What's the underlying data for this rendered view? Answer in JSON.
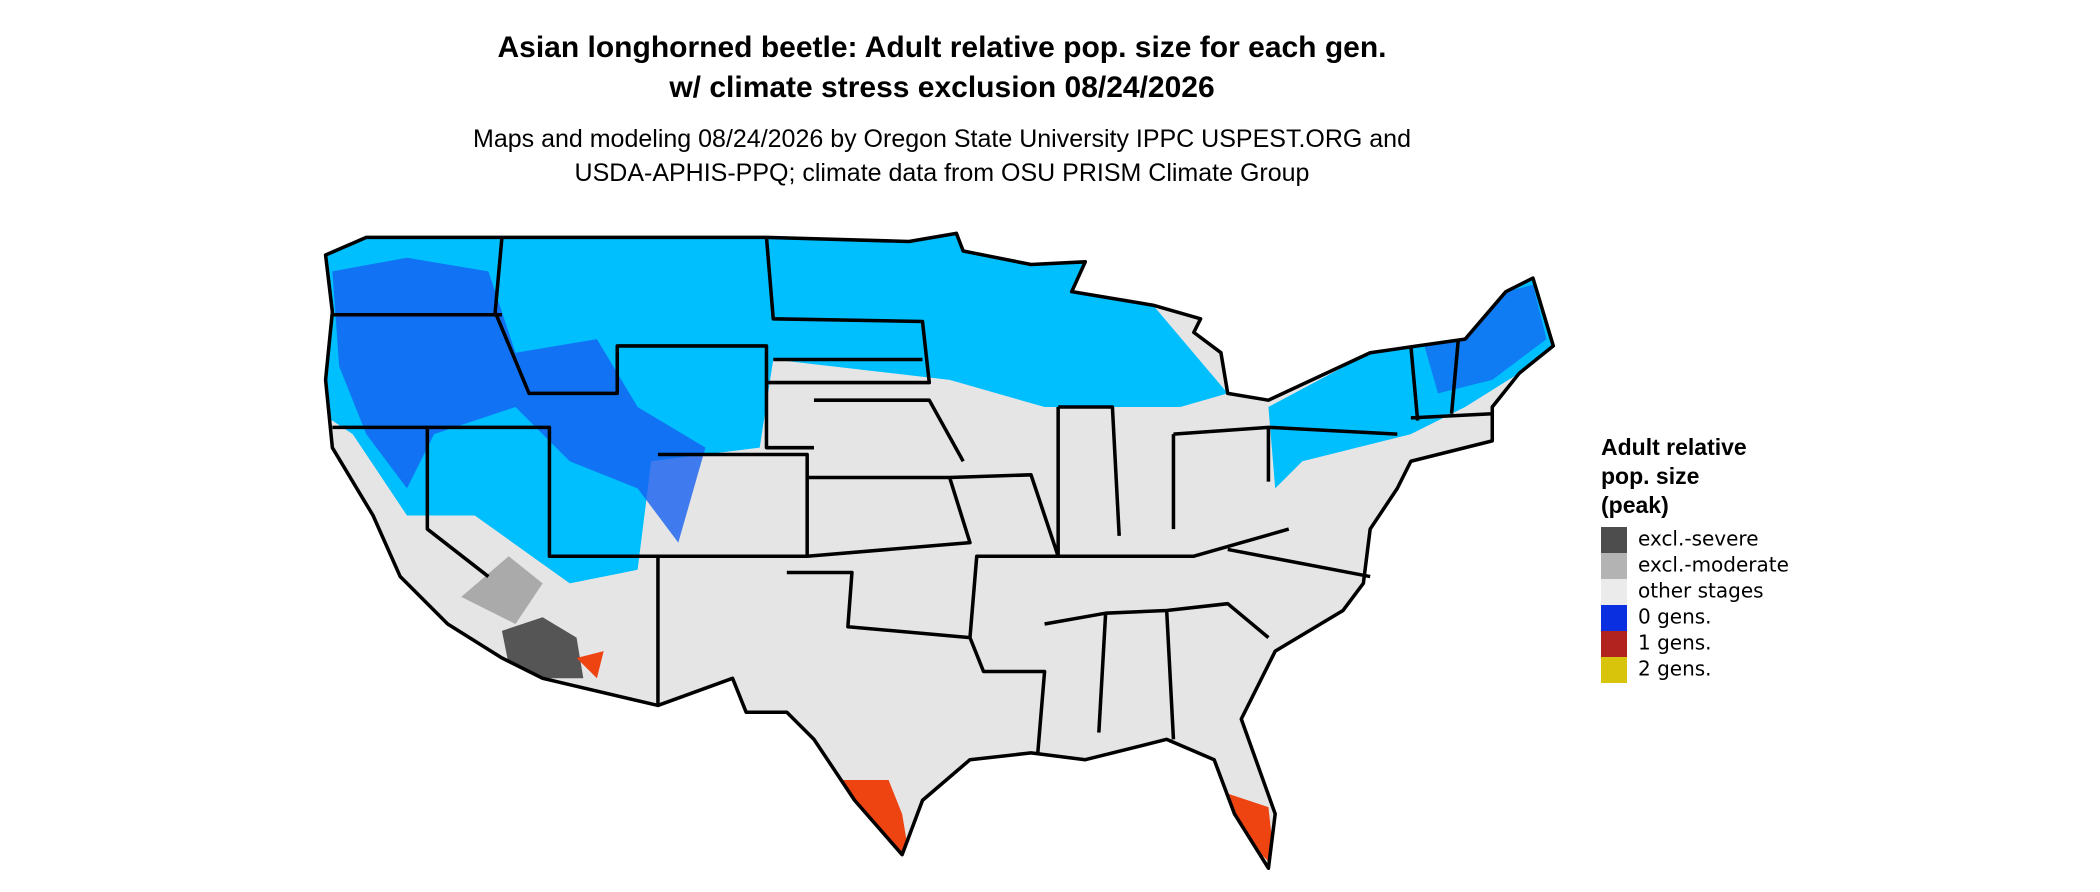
{
  "title": {
    "lines": [
      "Asian longhorned beetle: Adult relative pop. size for each gen.",
      "w/ climate stress exclusion 08/24/2026"
    ]
  },
  "subtitle": {
    "lines": [
      "Maps and modeling 08/24/2026 by Oregon State University IPPC USPEST.ORG and",
      "USDA-APHIS-PPQ; climate data from OSU PRISM Climate Group"
    ]
  },
  "legend": {
    "title": [
      "Adult relative",
      "pop. size",
      "(peak)"
    ],
    "items": [
      {
        "label": "excl.-severe",
        "color": "#4d4d4d"
      },
      {
        "label": "excl.-moderate",
        "color": "#b3b3b3"
      },
      {
        "label": "other stages",
        "color": "#ebebeb"
      },
      {
        "label": "0 gens.",
        "color": "#0a2fe0"
      },
      {
        "label": "1 gens.",
        "color": "#b2221e"
      },
      {
        "label": "2 gens.",
        "color": "#d9c40c"
      }
    ]
  }
}
